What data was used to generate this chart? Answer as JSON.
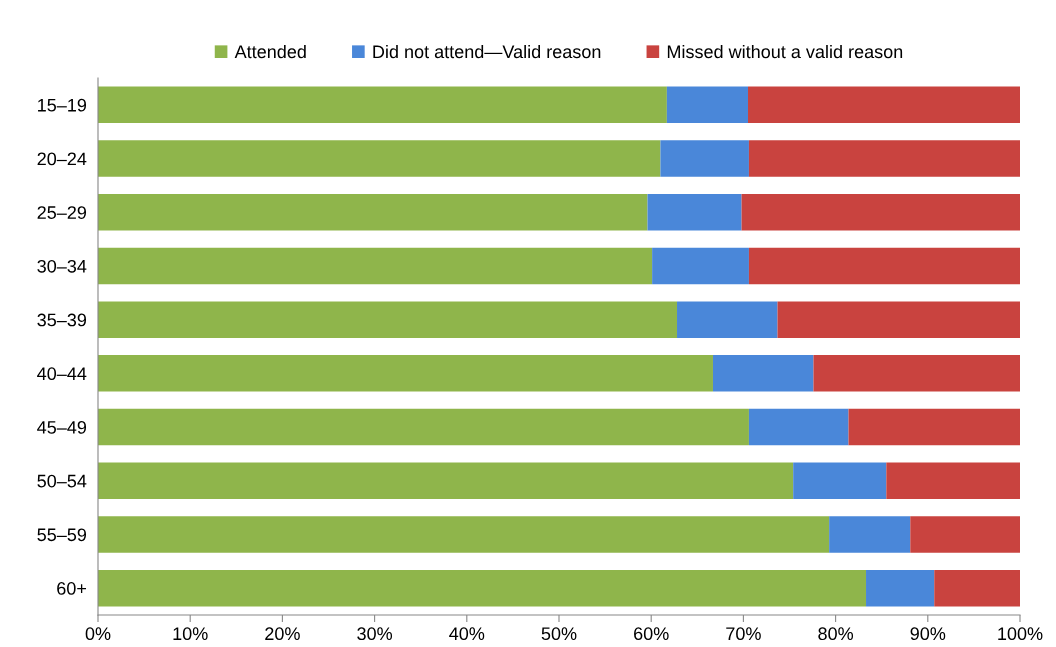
{
  "chart_data": {
    "type": "bar",
    "orientation": "horizontal",
    "stacked": true,
    "categories": [
      "15–19",
      "20–24",
      "25–29",
      "30–34",
      "35–39",
      "40–44",
      "45–49",
      "50–54",
      "55–59",
      "60+"
    ],
    "series": [
      {
        "name": "Attended",
        "color": "#8fb54b",
        "values": [
          61.7,
          61.0,
          59.6,
          60.1,
          62.8,
          66.7,
          70.6,
          75.4,
          79.3,
          83.3
        ]
      },
      {
        "name": "Did not attend—Valid reason",
        "color": "#4a87d9",
        "values": [
          8.8,
          9.6,
          10.2,
          10.5,
          10.9,
          10.9,
          10.8,
          10.1,
          8.8,
          7.4
        ]
      },
      {
        "name": "Missed without a valid reason",
        "color": "#c9433f",
        "values": [
          29.5,
          29.4,
          30.2,
          29.4,
          26.3,
          22.4,
          18.6,
          14.5,
          11.9,
          9.3
        ]
      }
    ],
    "xlim": [
      0,
      100
    ],
    "xticks": [
      {
        "value": 0,
        "label": "0%"
      },
      {
        "value": 10,
        "label": "10%"
      },
      {
        "value": 20,
        "label": "20%"
      },
      {
        "value": 30,
        "label": "30%"
      },
      {
        "value": 40,
        "label": "40%"
      },
      {
        "value": 50,
        "label": "50%"
      },
      {
        "value": 60,
        "label": "60%"
      },
      {
        "value": 70,
        "label": "70%"
      },
      {
        "value": 80,
        "label": "80%"
      },
      {
        "value": 90,
        "label": "90%"
      },
      {
        "value": 100,
        "label": "100%"
      }
    ],
    "legend": "top",
    "grid": false
  }
}
